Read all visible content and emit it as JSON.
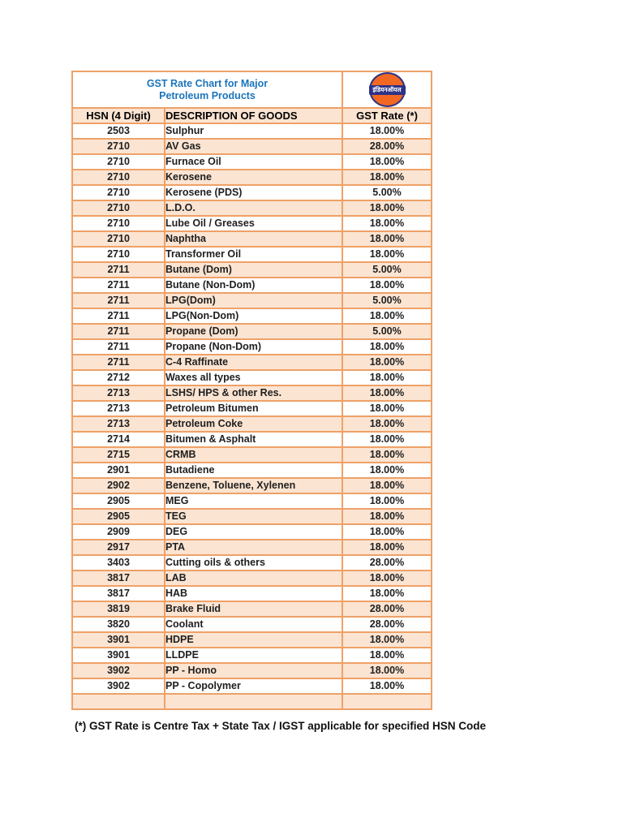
{
  "page": {
    "title_line1": "GST Rate Chart for Major",
    "title_line2": "Petroleum Products",
    "logo_text": "इंडियनऑयल",
    "footnote": "(*) GST Rate is Centre Tax + State Tax / IGST applicable for specified HSN Code"
  },
  "colors": {
    "title_blue": "#1b75bc",
    "border_orange": "#eea167",
    "row_peach": "#fbe4d2",
    "row_white": "#ffffff",
    "logo_orange": "#f26822",
    "logo_navy": "#2d3286",
    "text_black": "#1f1f1f"
  },
  "table": {
    "headers": [
      "HSN (4 Digit)",
      "DESCRIPTION OF GOODS",
      "GST Rate (*)"
    ],
    "rows": [
      [
        "2503",
        "Sulphur",
        "18.00%"
      ],
      [
        "2710",
        "AV Gas",
        "28.00%"
      ],
      [
        "2710",
        "Furnace Oil",
        "18.00%"
      ],
      [
        "2710",
        "Kerosene",
        "18.00%"
      ],
      [
        "2710",
        "Kerosene (PDS)",
        "5.00%"
      ],
      [
        "2710",
        "L.D.O.",
        "18.00%"
      ],
      [
        "2710",
        "Lube Oil / Greases",
        "18.00%"
      ],
      [
        "2710",
        "Naphtha",
        "18.00%"
      ],
      [
        "2710",
        "Transformer Oil",
        "18.00%"
      ],
      [
        "2711",
        "Butane (Dom)",
        "5.00%"
      ],
      [
        "2711",
        "Butane (Non-Dom)",
        "18.00%"
      ],
      [
        "2711",
        "LPG(Dom)",
        "5.00%"
      ],
      [
        "2711",
        "LPG(Non-Dom)",
        "18.00%"
      ],
      [
        "2711",
        "Propane (Dom)",
        "5.00%"
      ],
      [
        "2711",
        "Propane (Non-Dom)",
        "18.00%"
      ],
      [
        "2711",
        "C-4 Raffinate",
        "18.00%"
      ],
      [
        "2712",
        "Waxes all types",
        "18.00%"
      ],
      [
        "2713",
        "LSHS/ HPS & other Res.",
        "18.00%"
      ],
      [
        "2713",
        "Petroleum Bitumen",
        "18.00%"
      ],
      [
        "2713",
        "Petroleum Coke",
        "18.00%"
      ],
      [
        "2714",
        "Bitumen & Asphalt",
        "18.00%"
      ],
      [
        "2715",
        "CRMB",
        "18.00%"
      ],
      [
        "2901",
        "Butadiene",
        "18.00%"
      ],
      [
        "2902",
        "Benzene, Toluene, Xylenen",
        "18.00%"
      ],
      [
        "2905",
        "MEG",
        "18.00%"
      ],
      [
        "2905",
        "TEG",
        "18.00%"
      ],
      [
        "2909",
        "DEG",
        "18.00%"
      ],
      [
        "2917",
        "PTA",
        "18.00%"
      ],
      [
        "3403",
        "Cutting oils & others",
        "28.00%"
      ],
      [
        "3817",
        "LAB",
        "18.00%"
      ],
      [
        "3817",
        "HAB",
        "18.00%"
      ],
      [
        "3819",
        "Brake Fluid",
        "28.00%"
      ],
      [
        "3820",
        "Coolant",
        "28.00%"
      ],
      [
        "3901",
        "HDPE",
        "18.00%"
      ],
      [
        "3901",
        "LLDPE",
        "18.00%"
      ],
      [
        "3902",
        "PP - Homo",
        "18.00%"
      ],
      [
        "3902",
        "PP - Copolymer",
        "18.00%"
      ]
    ],
    "trailing_blank_row": true
  }
}
